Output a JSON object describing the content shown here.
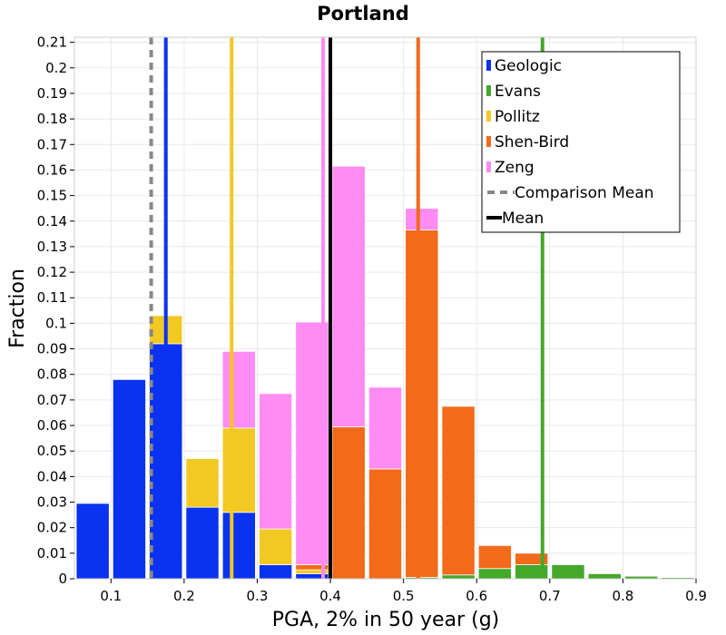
{
  "chart_data": {
    "type": "bar",
    "title": "Portland",
    "xlabel": "PGA, 2% in 50 year (g)",
    "ylabel": "Fraction",
    "xlim": [
      0.05,
      0.9
    ],
    "ylim": [
      0,
      0.212
    ],
    "stacked": true,
    "grid": true,
    "legend_position": "top-right",
    "x_ticks": [
      "0.1",
      "0.2",
      "0.3",
      "0.4",
      "0.5",
      "0.6",
      "0.7",
      "0.8",
      "0.9"
    ],
    "y_ticks": [
      "0",
      "0.01",
      "0.02",
      "0.03",
      "0.04",
      "0.05",
      "0.06",
      "0.07",
      "0.08",
      "0.09",
      "0.1",
      "0.11",
      "0.12",
      "0.13",
      "0.14",
      "0.15",
      "0.16",
      "0.17",
      "0.18",
      "0.19",
      "0.2",
      "0.21"
    ],
    "bin_centers": [
      0.075,
      0.125,
      0.175,
      0.225,
      0.275,
      0.325,
      0.375,
      0.425,
      0.475,
      0.525,
      0.575,
      0.625,
      0.675,
      0.725,
      0.775,
      0.825,
      0.875
    ],
    "series": [
      {
        "name": "Geologic",
        "color": "#0a32f0",
        "values": [
          0.0295,
          0.078,
          0.092,
          0.028,
          0.026,
          0.0055,
          0.002,
          0,
          0,
          0,
          0,
          0,
          0,
          0,
          0,
          0,
          0
        ]
      },
      {
        "name": "Evans",
        "color": "#44a82a",
        "values": [
          0,
          0,
          0,
          0,
          0,
          0,
          0,
          0,
          0,
          0.0005,
          0.0015,
          0.004,
          0.0055,
          0.0055,
          0.002,
          0.001,
          0.0005
        ]
      },
      {
        "name": "Pollitz",
        "color": "#f2c822",
        "values": [
          0,
          0,
          0.011,
          0.019,
          0.033,
          0.014,
          0.0015,
          0,
          0,
          0,
          0,
          0,
          0,
          0,
          0,
          0,
          0
        ]
      },
      {
        "name": "Shen-Bird",
        "color": "#f26a1a",
        "values": [
          0,
          0,
          0,
          0,
          0,
          0,
          0.002,
          0.0595,
          0.043,
          0.136,
          0.066,
          0.009,
          0.0045,
          0,
          0,
          0,
          0
        ]
      },
      {
        "name": "Zeng",
        "color": "#ff8cf2",
        "values": [
          0,
          0,
          0,
          0,
          0.03,
          0.053,
          0.095,
          0.102,
          0.032,
          0.0085,
          0,
          0,
          0,
          0,
          0,
          0,
          0
        ]
      }
    ],
    "vertical_lines": [
      {
        "name": "Geologic",
        "x": 0.175,
        "color": "#0a32f0",
        "dashed": false
      },
      {
        "name": "Pollitz",
        "x": 0.265,
        "color": "#f2c822",
        "dashed": false
      },
      {
        "name": "Zeng",
        "x": 0.39,
        "color": "#ff8cf2",
        "dashed": false
      },
      {
        "name": "Shen-Bird",
        "x": 0.52,
        "color": "#f26a1a",
        "dashed": false
      },
      {
        "name": "Evans",
        "x": 0.69,
        "color": "#44a82a",
        "dashed": false
      },
      {
        "name": "Comparison Mean",
        "x": 0.155,
        "color": "#888888",
        "dashed": true
      },
      {
        "name": "Mean",
        "x": 0.4,
        "color": "#000000",
        "dashed": false
      }
    ],
    "legend": [
      {
        "label": "Geologic",
        "color": "#0a32f0",
        "kind": "box"
      },
      {
        "label": "Evans",
        "color": "#44a82a",
        "kind": "box"
      },
      {
        "label": "Pollitz",
        "color": "#f2c822",
        "kind": "box"
      },
      {
        "label": "Shen-Bird",
        "color": "#f26a1a",
        "kind": "box"
      },
      {
        "label": "Zeng",
        "color": "#ff8cf2",
        "kind": "box"
      },
      {
        "label": "Comparison Mean",
        "color": "#888888",
        "kind": "dash"
      },
      {
        "label": "Mean",
        "color": "#000000",
        "kind": "line"
      }
    ]
  }
}
